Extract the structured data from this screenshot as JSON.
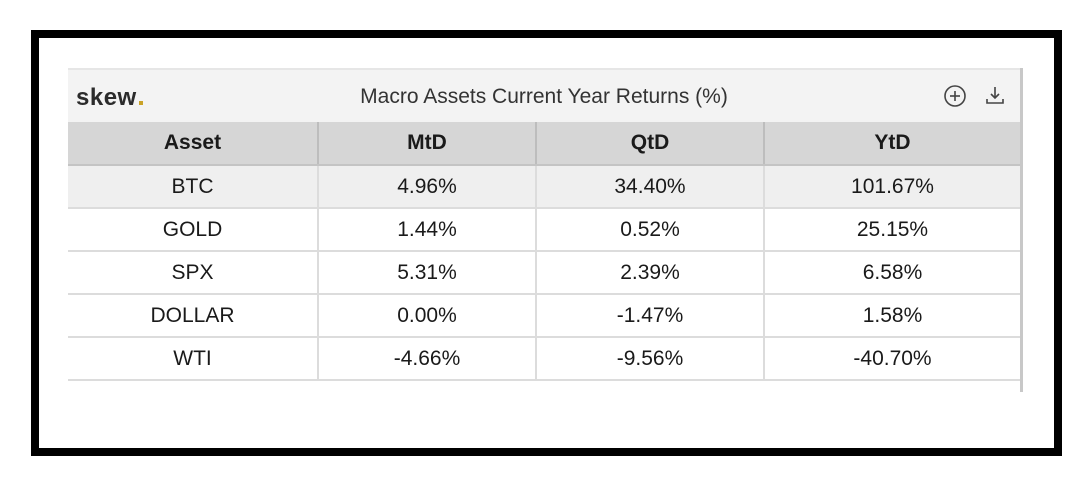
{
  "header": {
    "logo_text": "skew",
    "title": "Macro Assets Current Year Returns (%)",
    "icons": [
      "add-circle-icon",
      "download-icon"
    ]
  },
  "colors": {
    "logo_dot": "#c9a227",
    "header_bg": "#f3f3f3",
    "column_header_bg": "#d6d6d6",
    "first_row_bg": "#efefef",
    "frame": "#000000"
  },
  "table": {
    "columns": [
      "Asset",
      "MtD",
      "QtD",
      "YtD"
    ],
    "rows": [
      [
        "BTC",
        "4.96%",
        "34.40%",
        "101.67%"
      ],
      [
        "GOLD",
        "1.44%",
        "0.52%",
        "25.15%"
      ],
      [
        "SPX",
        "5.31%",
        "2.39%",
        "6.58%"
      ],
      [
        "DOLLAR",
        "0.00%",
        "-1.47%",
        "1.58%"
      ],
      [
        "WTI",
        "-4.66%",
        "-9.56%",
        "-40.70%"
      ]
    ]
  }
}
